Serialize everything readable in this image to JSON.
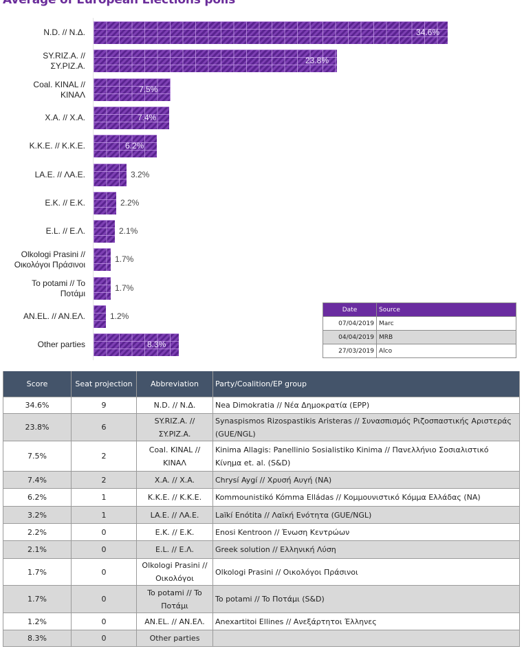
{
  "title": "Average of European Elections polls",
  "colors": {
    "bar": "#6a2ca0",
    "title": "#6a2c9a",
    "table_header": "#44546a",
    "legend_header": "#6a2ca0",
    "alt_row": "#d9d9d9"
  },
  "chart_data": {
    "type": "bar",
    "orientation": "horizontal",
    "title": "Average of European Elections polls",
    "xlabel": "",
    "ylabel": "",
    "xlim": [
      0,
      35
    ],
    "grid": false,
    "categories": [
      "N.D. // N.Δ.",
      "SY.RIZ.A. // ΣY.PIZ.A.",
      "Coal. KINAL // KINAΛ",
      "X.A. // X.A.",
      "K.K.E. // K.K.E.",
      "LA.E. // ΛA.E.",
      "E.K. // E.K.",
      "E.L. // E.Λ.",
      "Olkologi Prasini // Οικολόγοι Πράσινοι",
      "To potami // To Ποτάμι",
      "AN.EL. // AN.EΛ.",
      "Other parties"
    ],
    "category_lines": [
      [
        "N.D. // N.Δ."
      ],
      [
        "SY.RIZ.A. //",
        "ΣY.PIZ.A."
      ],
      [
        "Coal. KINAL //",
        "KINAΛ"
      ],
      [
        "X.A. // X.A."
      ],
      [
        "K.K.E. // K.K.E."
      ],
      [
        "LA.E. // ΛA.E."
      ],
      [
        "E.K. // E.K."
      ],
      [
        "E.L. // E.Λ."
      ],
      [
        "Olkologi Prasini //",
        "Οικολόγοι Πράσινοι"
      ],
      [
        "To potami // To",
        "Ποτάμι"
      ],
      [
        "AN.EL. // AN.EΛ."
      ],
      [
        "Other parties"
      ]
    ],
    "values": [
      34.6,
      23.8,
      7.5,
      7.4,
      6.2,
      3.2,
      2.2,
      2.1,
      1.7,
      1.7,
      1.2,
      8.3
    ],
    "value_labels": [
      "34.6%",
      "23.8%",
      "7.5%",
      "7.4%",
      "6.2%",
      "3.2%",
      "2.2%",
      "2.1%",
      "1.7%",
      "1.7%",
      "1.2%",
      "8.3%"
    ],
    "legend": "none"
  },
  "sources_table": {
    "headers": [
      "Date",
      "Source"
    ],
    "rows": [
      [
        "07/04/2019",
        "Marc"
      ],
      [
        "04/04/2019",
        "MRB"
      ],
      [
        "27/03/2019",
        "Alco"
      ]
    ]
  },
  "results_table": {
    "headers": [
      "Score",
      "Seat projection",
      "Abbreviation",
      "Party/Coalition/EP group"
    ],
    "rows": [
      [
        "34.6%",
        "9",
        "N.D. // N.Δ.",
        "Nea Dimokratia // Νέα Δημοκρατία (EPP)"
      ],
      [
        "23.8%",
        "6",
        "SY.RIZ.A. // ΣY.PIZ.A.",
        "Synaspismos Rizospastikis Aristeras // Συνασπισμός Ριζοσπαστικής Αριστεράς (GUE/NGL)"
      ],
      [
        "7.5%",
        "2",
        "Coal. KINAL // KINAΛ",
        "Kinima Allagis: Panellinio Sosialistiko Kinima // Πανελλήνιο Σοσιαλιστικό Κίνημα et. al. (S&D)"
      ],
      [
        "7.4%",
        "2",
        "X.A. // X.A.",
        "Chrysí Aygí // Χρυσή Αυγή (NA)"
      ],
      [
        "6.2%",
        "1",
        "K.K.E. // K.K.E.",
        "Kommounistikó Kómma Elládas // Κομμουνιστικό Κόμμα Ελλάδας (NA)"
      ],
      [
        "3.2%",
        "1",
        "LA.E. // ΛA.E.",
        "Laïkí Enótita // Λαϊκή Ενότητα (GUE/NGL)"
      ],
      [
        "2.2%",
        "0",
        "E.K. // E.K.",
        "Enosi Kentroon // Ένωση Κεντρώων"
      ],
      [
        "2.1%",
        "0",
        "E.L. // E.Λ.",
        "Greek solution // Ελληνική Λύση"
      ],
      [
        "1.7%",
        "0",
        "Olkologi Prasini // Οικολόγοι",
        "Olkologi Prasini // Οικολόγοι Πράσινοι"
      ],
      [
        "1.7%",
        "0",
        "To potami // To Ποτάμι",
        "To potami // To Ποτάμι (S&D)"
      ],
      [
        "1.2%",
        "0",
        "AN.EL. // AN.EΛ.",
        "Anexartitoi Ellines // Ανεξάρτητοι Έλληνες"
      ],
      [
        "8.3%",
        "0",
        "Other parties",
        ""
      ]
    ]
  }
}
